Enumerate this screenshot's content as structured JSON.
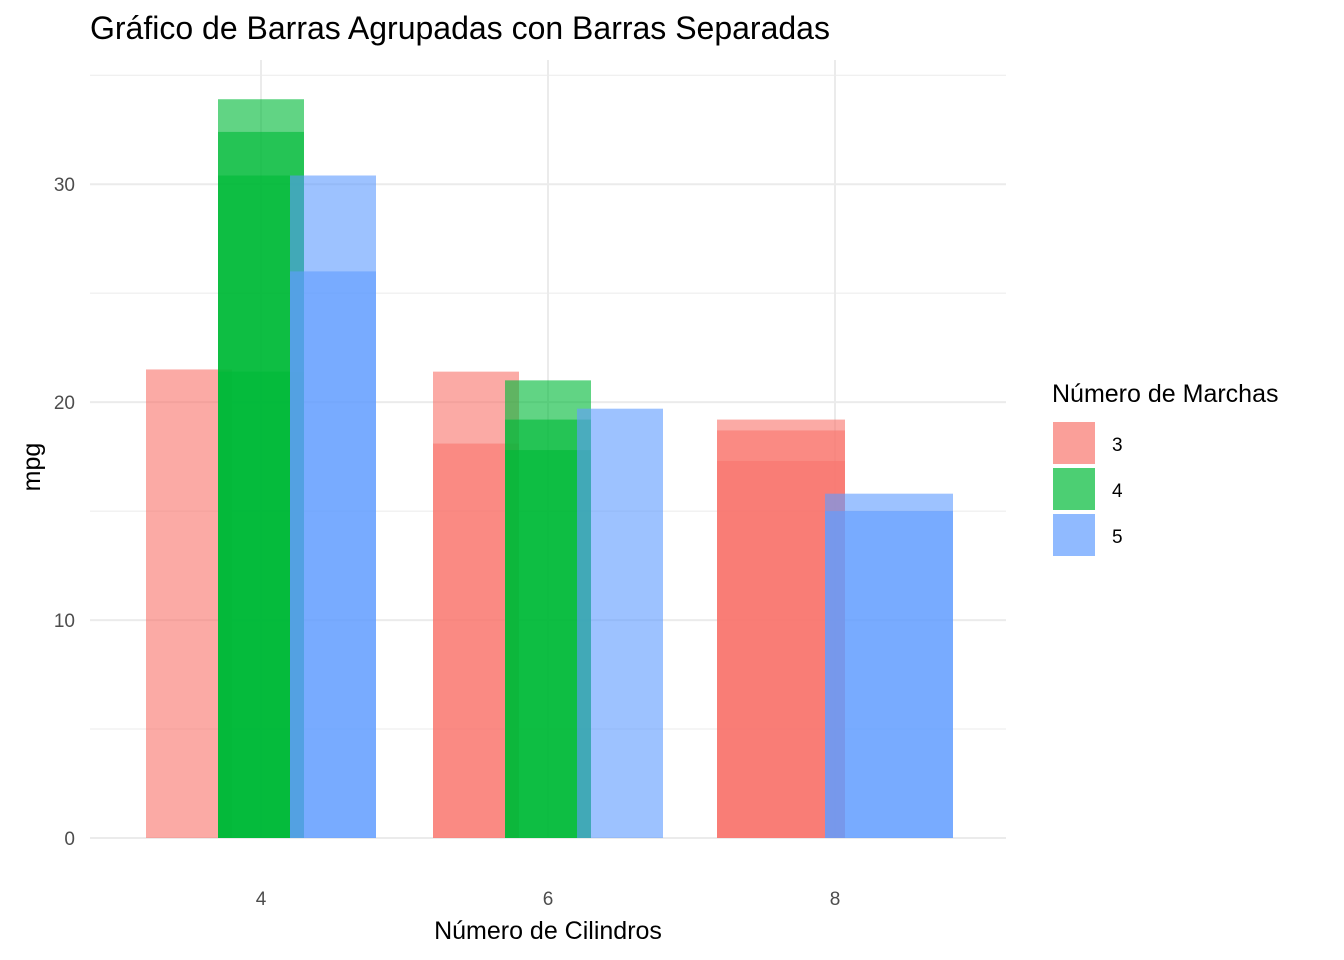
{
  "chart_data": {
    "type": "bar",
    "title": "Gráfico de Barras Agrupadas con Barras Separadas",
    "xlabel": "Número de Cilindros",
    "ylabel": "mpg",
    "ylim": [
      0,
      35
    ],
    "yticks": [
      0,
      10,
      20,
      30
    ],
    "categories": [
      "4",
      "6",
      "8"
    ],
    "legend": {
      "title": "Número de Marchas",
      "position": "right"
    },
    "grid": true,
    "series": [
      {
        "name": "3",
        "color": "#F8766D",
        "groups": [
          [
            21.5
          ],
          [
            21.4,
            18.1
          ],
          [
            19.2,
            18.7,
            17.3
          ]
        ]
      },
      {
        "name": "4",
        "color": "#00BA38",
        "groups": [
          [
            33.9,
            32.4,
            30.4,
            21.4
          ],
          [
            21.0,
            19.2,
            17.8
          ],
          []
        ]
      },
      {
        "name": "5",
        "color": "#619CFF",
        "groups": [
          [
            30.4,
            26.0
          ],
          [
            19.7
          ],
          [
            15.8,
            15.0
          ]
        ]
      }
    ]
  }
}
